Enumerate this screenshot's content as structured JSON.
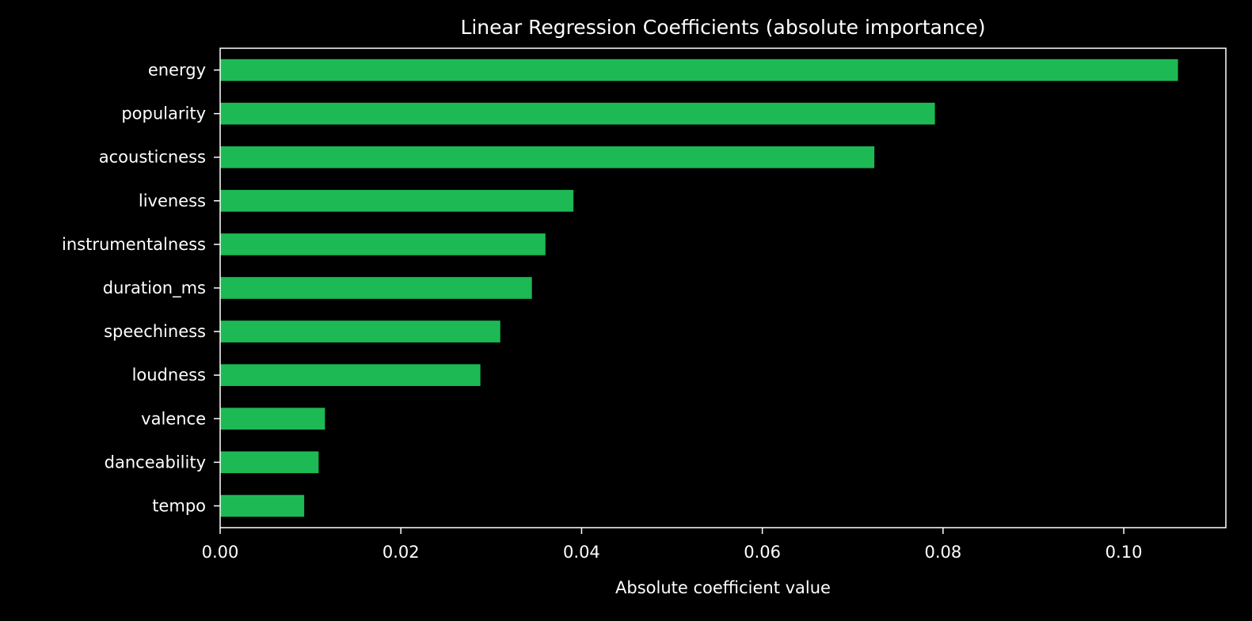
{
  "chart_data": {
    "type": "bar",
    "orientation": "horizontal",
    "title": "Linear Regression Coefficients (absolute importance)",
    "xlabel": "Absolute coefficient value",
    "ylabel": "",
    "categories": [
      "energy",
      "popularity",
      "acousticness",
      "liveness",
      "instrumentalness",
      "duration_ms",
      "speechiness",
      "loudness",
      "valence",
      "danceability",
      "tempo"
    ],
    "values": [
      0.106,
      0.0791,
      0.0724,
      0.0391,
      0.036,
      0.0345,
      0.031,
      0.0288,
      0.0116,
      0.0109,
      0.0093
    ],
    "xlim": [
      0,
      0.1113
    ],
    "xticks": [
      0.0,
      0.02,
      0.04,
      0.06,
      0.08,
      0.1
    ],
    "xtick_labels": [
      "0.00",
      "0.02",
      "0.04",
      "0.06",
      "0.08",
      "0.10"
    ],
    "grid": false,
    "legend": "none",
    "colors": {
      "background": "#000000",
      "bar": "#1DB954",
      "axis": "#ffffff",
      "text": "#ffffff"
    }
  }
}
